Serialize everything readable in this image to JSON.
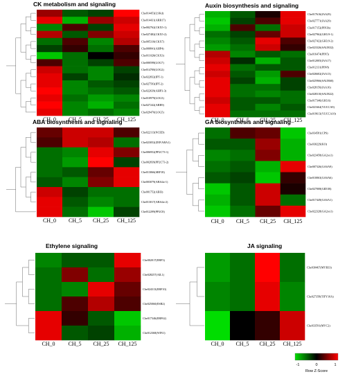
{
  "colors": {
    "low": "#00dd00",
    "mid": "#000000",
    "high": "#ff0000"
  },
  "key": {
    "ticks": [
      "-1",
      "0",
      "1"
    ],
    "title": "Row Z-Score"
  },
  "chart_data": [
    {
      "type": "heatmap",
      "title": "CK metabolism and signaling",
      "columns": [
        "CH_0",
        "CH_5",
        "CH_25",
        "CH_125"
      ],
      "rows": [
        {
          "label": "Che014453(LSKd)",
          "values": [
            0.6,
            -0.4,
            -0.3,
            1.0
          ]
        },
        {
          "label": "Che014431(ARR17)",
          "values": [
            0.9,
            -0.8,
            0.6,
            0.8
          ]
        },
        {
          "label": "Che002762(CKX5-1)",
          "values": [
            -0.6,
            0.3,
            -0.3,
            0.9
          ]
        },
        {
          "label": "Che027482(CKX5-2)",
          "values": [
            0.7,
            -0.4,
            0.5,
            0.8
          ]
        },
        {
          "label": "Che005310(CKX7)",
          "values": [
            -0.5,
            0.3,
            -0.6,
            0.7
          ]
        },
        {
          "label": "Che000841(AHP4)",
          "values": [
            -0.3,
            0.2,
            -0.5,
            0.3
          ]
        },
        {
          "label": "Che011020(CKX3)",
          "values": [
            -0.9,
            -0.5,
            0.0,
            0.2
          ]
        },
        {
          "label": "Che000598(LOG7)",
          "values": [
            0.3,
            -0.5,
            -0.3,
            0.3
          ]
        },
        {
          "label": "Che014700(LOG2)",
          "values": [
            0.8,
            -0.5,
            -0.6,
            -0.3
          ]
        },
        {
          "label": "Che022832(IPT-1)",
          "values": [
            0.9,
            -0.3,
            -0.6,
            -0.2
          ]
        },
        {
          "label": "Che027593(IPT-2)",
          "values": [
            0.9,
            -0.6,
            -0.4,
            -0.3
          ]
        },
        {
          "label": "Che022639(AHP3-3)",
          "values": [
            1.0,
            -0.6,
            -0.5,
            -0.4
          ]
        },
        {
          "label": "Che010979(LOG3)",
          "values": [
            0.9,
            -0.5,
            -0.7,
            -0.6
          ]
        },
        {
          "label": "Che027242(ARR9)",
          "values": [
            1.0,
            -0.6,
            -0.8,
            -0.5
          ]
        },
        {
          "label": "Che029470(LOG5)",
          "values": [
            0.9,
            -0.6,
            -0.5,
            -0.6
          ]
        }
      ]
    },
    {
      "type": "heatmap",
      "title": "Auxin biosynthesis and signaling",
      "columns": [
        "CH_0",
        "CH_5",
        "CH_25",
        "CH_125"
      ],
      "rows": [
        {
          "label": "Che017616(IAA29)",
          "values": [
            -0.8,
            -0.4,
            0.1,
            0.9
          ]
        },
        {
          "label": "Che027771(IAA29)",
          "values": [
            -0.9,
            -0.3,
            0.3,
            0.9
          ]
        },
        {
          "label": "Che017152(PIN3b)",
          "values": [
            -0.8,
            0.3,
            -0.5,
            0.8
          ]
        },
        {
          "label": "Che027962(GH3.9-1)",
          "values": [
            -0.5,
            -0.3,
            0.4,
            0.8
          ]
        },
        {
          "label": "Che027422(GH3.9-2)",
          "values": [
            -0.6,
            -0.4,
            0.9,
            0.3
          ]
        },
        {
          "label": "Che023326(SAUR32)",
          "values": [
            -0.7,
            -0.5,
            0.8,
            0.2
          ]
        },
        {
          "label": "Che016474(PIN5)",
          "values": [
            0.7,
            -0.6,
            -0.4,
            -0.5
          ]
        },
        {
          "label": "Che012005(IAA17)",
          "values": [
            0.8,
            -0.2,
            -0.8,
            -0.4
          ]
        },
        {
          "label": "Che012131(PIN8)",
          "values": [
            0.9,
            -0.5,
            -0.4,
            -0.4
          ]
        },
        {
          "label": "Che026602(IAA13)",
          "values": [
            0.8,
            -0.4,
            -0.7,
            0.3
          ]
        },
        {
          "label": "Che025966(SAUR60)",
          "values": [
            0.9,
            -0.3,
            -0.8,
            -0.3
          ]
        },
        {
          "label": "Che028156(IAA16)",
          "values": [
            0.9,
            -0.5,
            -0.5,
            -0.3
          ]
        },
        {
          "label": "Che028310(SAUR22)",
          "values": [
            0.9,
            -0.5,
            -0.6,
            -0.5
          ]
        },
        {
          "label": "Che017346(GH3.6)",
          "values": [
            0.8,
            -0.4,
            -0.4,
            -0.5
          ]
        },
        {
          "label": "Che021664(YUCCA9)",
          "values": [
            0.9,
            -0.4,
            -0.6,
            -0.4
          ]
        },
        {
          "label": "Che019613(YUCCA10)",
          "values": [
            0.9,
            -0.5,
            -0.5,
            -0.5
          ]
        }
      ]
    },
    {
      "type": "heatmap",
      "title": "ABA biosynthesis and signaling",
      "columns": [
        "CH_0",
        "CH_5",
        "CH_25",
        "CH_125"
      ],
      "rows": [
        {
          "label": "Che022113(NCED)",
          "values": [
            0.4,
            0.8,
            0.8,
            0.3
          ]
        },
        {
          "label": "Che023052(ZEP/ABA1)",
          "values": [
            0.3,
            0.8,
            0.7,
            -0.5
          ]
        },
        {
          "label": "Che006952(PP2C73-1)",
          "values": [
            -0.5,
            -0.6,
            0.9,
            0.5
          ]
        },
        {
          "label": "Che002839(PP2C73-2)",
          "values": [
            -0.5,
            -0.7,
            1.0,
            -0.3
          ]
        },
        {
          "label": "Che013066(SRF18)",
          "values": [
            -0.5,
            -0.4,
            0.4,
            0.9
          ]
        },
        {
          "label": "Che003079(ABA4a-1)",
          "values": [
            -0.4,
            -0.6,
            0.5,
            0.9
          ]
        },
        {
          "label": "Che001752(ABI3)",
          "values": [
            0.8,
            -0.3,
            -0.5,
            -0.5
          ]
        },
        {
          "label": "Che013017(ABA4a-2)",
          "values": [
            0.9,
            -0.4,
            -0.6,
            -0.5
          ]
        },
        {
          "label": "Che012299(PP2C8)",
          "values": [
            0.9,
            -0.5,
            -0.9,
            -0.3
          ]
        }
      ]
    },
    {
      "type": "heatmap",
      "title": "GA biosynthesis and signaling",
      "columns": [
        "CH_0",
        "CH_5",
        "CH_25",
        "CH_125"
      ],
      "rows": [
        {
          "label": "Che034581(CPS)",
          "values": [
            -0.5,
            0.3,
            0.4,
            -0.9
          ]
        },
        {
          "label": "Che030229(KO)",
          "values": [
            -0.4,
            -0.4,
            0.6,
            -0.8
          ]
        },
        {
          "label": "Che023458(GA2ox1)",
          "values": [
            -0.6,
            -0.5,
            0.5,
            -0.8
          ]
        },
        {
          "label": "Che007326(GASA9)",
          "values": [
            -0.5,
            -0.4,
            -0.8,
            0.9
          ]
        },
        {
          "label": "Che010063(GASA6)",
          "values": [
            -0.4,
            -0.3,
            -0.9,
            0.2
          ]
        },
        {
          "label": "Che027008(GID1B)",
          "values": [
            -0.9,
            -0.4,
            0.8,
            0.1
          ]
        },
        {
          "label": "Che017449(GASA1)",
          "values": [
            -0.8,
            -0.4,
            0.8,
            -0.5
          ]
        },
        {
          "label": "Che022328(GA2ox1)",
          "values": [
            -0.9,
            -0.5,
            0.4,
            0.9
          ]
        }
      ]
    },
    {
      "type": "heatmap",
      "title": "Ethylene signaling",
      "columns": [
        "CH_0",
        "CH_5",
        "CH_25",
        "CH_125"
      ],
      "rows": [
        {
          "label": "Che002017(ERF3)",
          "values": [
            -0.6,
            -0.4,
            -0.4,
            0.9
          ]
        },
        {
          "label": "Che028257(AIL1)",
          "values": [
            -0.5,
            0.5,
            -0.5,
            0.6
          ]
        },
        {
          "label": "Che024313(ERF10)",
          "values": [
            -0.5,
            -0.6,
            0.9,
            0.4
          ]
        },
        {
          "label": "Che025060(ESR2)",
          "values": [
            -0.5,
            0.3,
            0.7,
            0.3
          ]
        },
        {
          "label": "Che017346(ERF62)",
          "values": [
            0.9,
            0.2,
            -0.4,
            -0.9
          ]
        },
        {
          "label": "Che012368(WIN1)",
          "values": [
            0.9,
            -0.4,
            -0.3,
            -0.8
          ]
        }
      ]
    },
    {
      "type": "heatmap",
      "title": "JA signaling",
      "columns": [
        "CH_0",
        "CH_5",
        "CH_25",
        "CH_125"
      ],
      "rows": [
        {
          "label": "Che030467(MYB33)",
          "values": [
            -0.7,
            -0.5,
            1.0,
            -0.5
          ]
        },
        {
          "label": "Che027358(TIFY10A)",
          "values": [
            -0.6,
            -0.5,
            0.9,
            -0.6
          ]
        },
        {
          "label": "Che033591(MYC2)",
          "values": [
            -1.0,
            0.0,
            0.2,
            0.8
          ]
        }
      ]
    }
  ]
}
